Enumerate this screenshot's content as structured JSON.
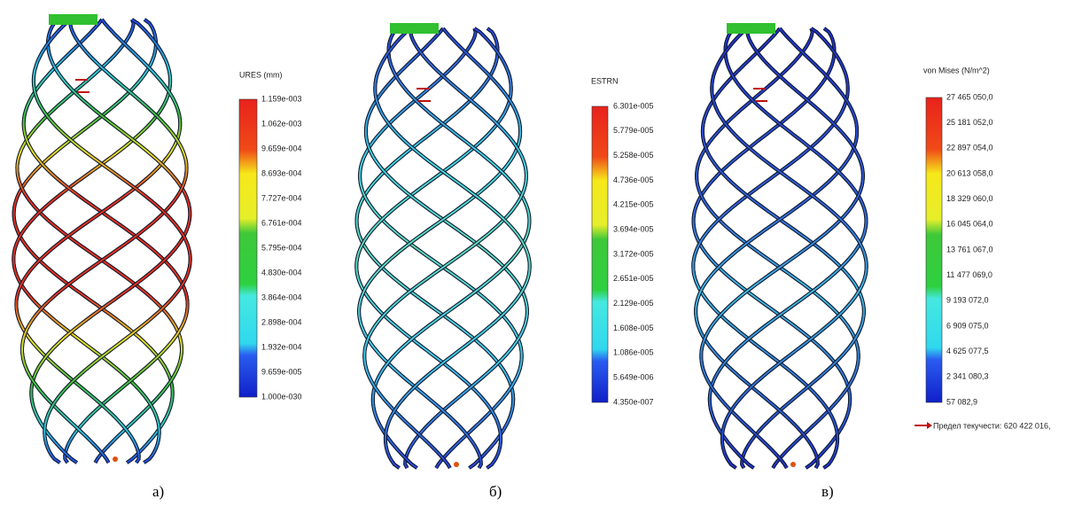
{
  "panels": [
    {
      "legend_title": "URES (mm)",
      "ticks": [
        "1.159e-003",
        "1.062e-003",
        "9.659e-004",
        "8.693e-004",
        "7.727e-004",
        "6.761e-004",
        "5.795e-004",
        "4.830e-004",
        "3.864e-004",
        "2.898e-004",
        "1.932e-004",
        "9.659e-005",
        "1.000e-030"
      ],
      "caption": "а)"
    },
    {
      "legend_title": "ESTRN",
      "ticks": [
        "6.301e-005",
        "5.779e-005",
        "5.258e-005",
        "4.736e-005",
        "4.215e-005",
        "3.694e-005",
        "3.172e-005",
        "2.651e-005",
        "2.129e-005",
        "1.608e-005",
        "1.086e-005",
        "5.649e-006",
        "4.350e-007"
      ],
      "caption": "б)"
    },
    {
      "legend_title": "von Mises (N/m^2)",
      "ticks": [
        "27 465 050,0",
        "25 181 052,0",
        "22 897 054,0",
        "20 613 058,0",
        "18 329 060,0",
        "16 045 064,0",
        "13 761 067,0",
        "11 477 069,0",
        "9 193 072,0",
        "6 909 075,0",
        "4 625 077,5",
        "2 341 080,3",
        "57 082,9"
      ],
      "caption": "в)",
      "note": "Предел текучести: 620 422 016,"
    }
  ]
}
